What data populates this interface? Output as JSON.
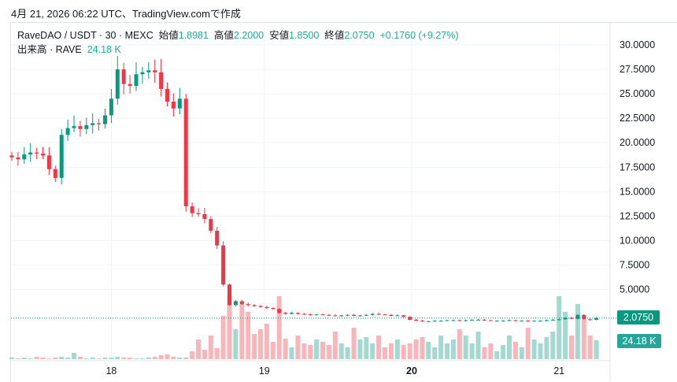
{
  "caption": "4月 21, 2026 06:22 UTC、TradingView.comで作成",
  "legend": {
    "symbol": "RaveDAO / USDT · 30 · MEXC",
    "open_label": "始値",
    "open": "1.8981",
    "high_label": "高値",
    "high": "2.2000",
    "low_label": "安値",
    "low": "1.8500",
    "close_label": "終値",
    "close": "2.0750",
    "change": "+0.1760 (+9.27%)",
    "volume_label": "出来高 · RAVE",
    "volume": "24.18 K"
  },
  "colors": {
    "up": "#089981",
    "down": "#f23645",
    "up_vol": "#93d2c8",
    "down_vol": "#f7a9ae",
    "tag": "#089981",
    "vol_tag": "#26a69a"
  },
  "chart_data": {
    "type": "candlestick",
    "title": "RaveDAO / USDT · 30 · MEXC",
    "y_ticks": [
      "30.0000",
      "27.5000",
      "25.0000",
      "22.5000",
      "20.0000",
      "17.5000",
      "15.0000",
      "12.5000",
      "10.0000",
      "7.5000",
      "5.0000"
    ],
    "ylim": [
      0,
      30
    ],
    "x_ticks": [
      {
        "label": "18",
        "bar": 16
      },
      {
        "label": "19",
        "bar": 40.6
      },
      {
        "label": "20",
        "bar": 64.3
      },
      {
        "label": "21",
        "bar": 88
      }
    ],
    "last_price_label": "2.0750",
    "last_volume_label": "24.18 K",
    "close": [
      18.5,
      18.3,
      18.8,
      19.0,
      18.9,
      18.7,
      17.3,
      16.4,
      20.8,
      21.5,
      21.7,
      21.4,
      21.8,
      22.0,
      21.9,
      22.8,
      24.5,
      27.5,
      26.0,
      25.8,
      27.0,
      27.2,
      27.4,
      27.2,
      25.5,
      24.2,
      23.5,
      24.5,
      13.5,
      12.8,
      12.7,
      12.2,
      11.0,
      9.5,
      5.5,
      3.4,
      3.8,
      3.5,
      3.4,
      3.3,
      3.2,
      3.1,
      3.0,
      2.6,
      2.5,
      2.6,
      2.5,
      2.45,
      2.4,
      2.45,
      2.4,
      2.35,
      2.3,
      2.35,
      2.4,
      2.3,
      2.35,
      2.4,
      2.5,
      2.45,
      2.4,
      2.3,
      2.35,
      2.2,
      1.9,
      1.8,
      1.75,
      1.75,
      1.8,
      1.8,
      1.85,
      1.85,
      1.8,
      1.85,
      1.9,
      1.9,
      1.85,
      1.8,
      1.8,
      1.8,
      1.85,
      1.8,
      1.8,
      1.75,
      1.8,
      1.8,
      1.85,
      1.9,
      1.95,
      2.1,
      2.0,
      2.4,
      1.95,
      1.9,
      2.075
    ],
    "volume_k": [
      2,
      1,
      2,
      1,
      3,
      2,
      1,
      2,
      3,
      2,
      8,
      3,
      1,
      2,
      1,
      2,
      2,
      3,
      2,
      2,
      1,
      1,
      2,
      3,
      5,
      6,
      3,
      2,
      2,
      10,
      25,
      12,
      30,
      14,
      55,
      80,
      38,
      70,
      60,
      32,
      38,
      45,
      22,
      80,
      26,
      15,
      30,
      20,
      18,
      25,
      22,
      18,
      35,
      20,
      15,
      40,
      25,
      28,
      20,
      30,
      15,
      20,
      25,
      18,
      20,
      25,
      28,
      22,
      15,
      30,
      20,
      25,
      38,
      30,
      20,
      35,
      15,
      20,
      10,
      18,
      30,
      22,
      15,
      40,
      25,
      20,
      28,
      35,
      80,
      60,
      30,
      70,
      50,
      30,
      24.18
    ]
  }
}
